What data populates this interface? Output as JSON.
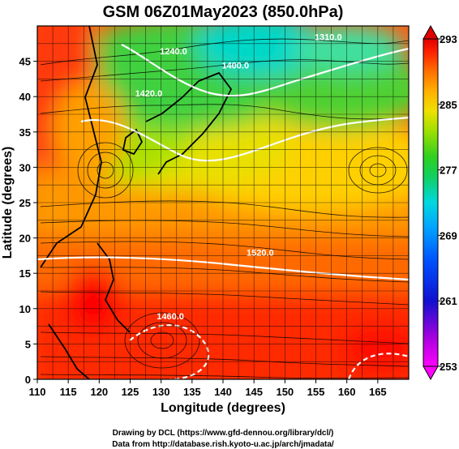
{
  "figure": {
    "title": "GSM 06Z01May2023 (850.0hPa)",
    "xlabel": "Longitude (degrees)",
    "ylabel": "Latitude  (degrees)",
    "credit_line1": "Drawing by DCL (https://www.gfd-dennou.org/library/dcl/)",
    "credit_line2": "Data from http://database.rish.kyoto-u.ac.jp/arch/jmadata/"
  },
  "map": {
    "lon_range": [
      110,
      170
    ],
    "lat_range": [
      0,
      50
    ],
    "x_ticks": [
      110,
      115,
      120,
      125,
      130,
      135,
      140,
      145,
      150,
      155,
      160,
      165
    ],
    "x_tick_labels": [
      "110",
      "115",
      "120",
      "125",
      "130",
      "135",
      "140",
      "145",
      "150",
      "155",
      "160",
      "165"
    ],
    "y_ticks": [
      0,
      5,
      10,
      15,
      20,
      25,
      30,
      35,
      40,
      45
    ],
    "y_tick_labels": [
      "0",
      "5",
      "10",
      "15",
      "20",
      "25",
      "30",
      "35",
      "40",
      "45"
    ],
    "grid": true,
    "field": "temperature (K)",
    "streamlines": true,
    "contour_labels": [
      {
        "text": "1240.0",
        "lon": 132,
        "lat": 46
      },
      {
        "text": "1400.0",
        "lon": 142,
        "lat": 44
      },
      {
        "text": "1420.0",
        "lon": 128,
        "lat": 40
      },
      {
        "text": "1520.0",
        "lon": 146,
        "lat": 17.5
      },
      {
        "text": "1460.0",
        "lon": 131.5,
        "lat": 8.5
      },
      {
        "text": "1310.0",
        "lon": 157,
        "lat": 48
      }
    ]
  },
  "colorbar": {
    "min": 253,
    "max": 293,
    "tick_values": [
      293,
      285,
      277,
      269,
      261,
      253
    ],
    "tick_labels": [
      "293",
      "285",
      "277",
      "269",
      "261",
      "253"
    ],
    "colors": [
      "#ff00ff",
      "#b000e0",
      "#1010d0",
      "#0050ff",
      "#00a0ff",
      "#00d8e0",
      "#10d060",
      "#30d020",
      "#a0e000",
      "#f0e000",
      "#ffb000",
      "#ff7000",
      "#ff2000",
      "#e00000"
    ]
  }
}
